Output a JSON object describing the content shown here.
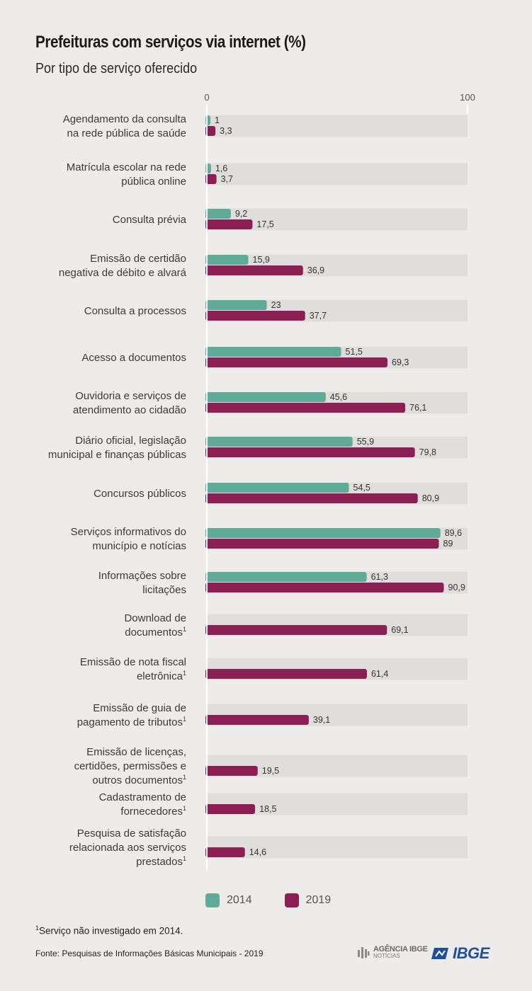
{
  "header": {
    "title": "Prefeituras com serviços via internet (%)",
    "subtitle": "Por tipo de serviço oferecido"
  },
  "colors": {
    "s2014": "#5fab97",
    "s2019": "#8b1f54",
    "track": "#e0dedc"
  },
  "chart_data": {
    "type": "bar",
    "orientation": "horizontal",
    "title": "Prefeituras com serviços via internet (%)",
    "subtitle": "Por tipo de serviço oferecido",
    "xlim": [
      0,
      100
    ],
    "ticks": [
      "0",
      "100"
    ],
    "legend_position": "bottom",
    "categories": [
      {
        "lines": [
          "Agendamento da consulta",
          "na rede pública de saúde"
        ]
      },
      {
        "lines": [
          "Matrícula escolar na rede",
          "pública online"
        ]
      },
      {
        "lines": [
          "Consulta prévia"
        ]
      },
      {
        "lines": [
          "Emissão de certidão",
          "negativa de débito e alvará"
        ]
      },
      {
        "lines": [
          "Consulta a processos"
        ]
      },
      {
        "lines": [
          "Acesso a documentos"
        ]
      },
      {
        "lines": [
          "Ouvidoria e serviços de",
          "atendimento ao cidadão"
        ]
      },
      {
        "lines": [
          "Diário oficial, legislação",
          "municipal e finanças públicas"
        ]
      },
      {
        "lines": [
          "Concursos públicos"
        ]
      },
      {
        "lines": [
          "Serviços informativos do",
          "município e notícias"
        ]
      },
      {
        "lines": [
          "Informações sobre",
          "licitações"
        ]
      },
      {
        "lines": [
          "Download de",
          "documentos"
        ],
        "note": "1"
      },
      {
        "lines": [
          "Emissão de nota fiscal",
          "eletrônica"
        ],
        "note": "1"
      },
      {
        "lines": [
          "Emissão de guia de",
          "pagamento de tributos"
        ],
        "note": "1"
      },
      {
        "lines": [
          "Emissão de licenças,",
          "certidões, permissões e",
          "outros documentos"
        ],
        "note": "1"
      },
      {
        "lines": [
          "Cadastramento de",
          "fornecedores"
        ],
        "note": "1"
      },
      {
        "lines": [
          "Pesquisa de satisfação",
          "relacionada aos serviços",
          "prestados"
        ],
        "note": "1"
      }
    ],
    "series": [
      {
        "name": "2014",
        "values": [
          1,
          1.6,
          9.2,
          15.9,
          23,
          51.5,
          45.6,
          55.9,
          54.5,
          89.6,
          61.3,
          null,
          null,
          null,
          null,
          null,
          null
        ],
        "labels": [
          "1",
          "1,6",
          "9,2",
          "15,9",
          "23",
          "51,5",
          "45,6",
          "55,9",
          "54,5",
          "89,6",
          "61,3",
          "",
          "",
          "",
          "",
          "",
          ""
        ]
      },
      {
        "name": "2019",
        "values": [
          3.3,
          3.7,
          17.5,
          36.9,
          37.7,
          69.3,
          76.1,
          79.8,
          80.9,
          89,
          90.9,
          69.1,
          61.4,
          39.1,
          19.5,
          18.5,
          14.6
        ],
        "labels": [
          "3,3",
          "3,7",
          "17,5",
          "36,9",
          "37,7",
          "69,3",
          "76,1",
          "79,8",
          "80,9",
          "89",
          "90,9",
          "69,1",
          "61,4",
          "39,1",
          "19,5",
          "18,5",
          "14,6"
        ]
      }
    ]
  },
  "legend": {
    "item_2014": "2014",
    "item_2019": "2019"
  },
  "footnote": {
    "mark": "1",
    "text": "Serviço não investigado em 2014."
  },
  "source": "Fonte: Pesquisas de Informações Básicas Municipais - 2019",
  "logos": {
    "agencia_line1": "AGÊNCIA IBGE",
    "agencia_line2": "NOTÍCIAS",
    "ibge": "IBGE"
  }
}
